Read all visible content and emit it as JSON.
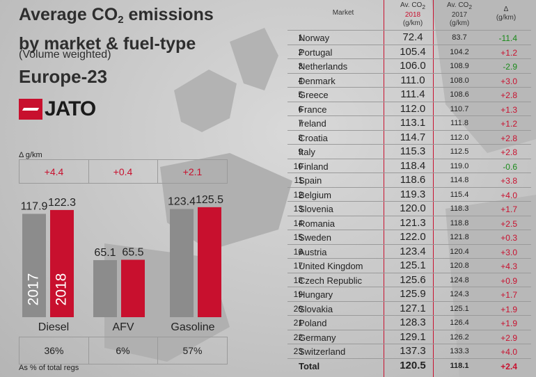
{
  "header": {
    "title_line1": "Average CO",
    "title_sub": "2",
    "title_line1_rest": " emissions",
    "title_line2": "by market & fuel-type",
    "subtitle": "(Volume weighted)",
    "region": "Europe-23",
    "brand": "JATO"
  },
  "colors": {
    "y2017": "#8c8c8c",
    "y2018": "#c8102e",
    "positive": "#c8102e",
    "negative": "#1a8a1a"
  },
  "chart_data": [
    {
      "type": "bar",
      "ylabel": "Δ g/km",
      "categories": [
        "Diesel",
        "AFV",
        "Gasoline"
      ],
      "series": [
        {
          "name": "2017",
          "values": [
            117.9,
            65.1,
            123.4
          ]
        },
        {
          "name": "2018",
          "values": [
            122.3,
            65.5,
            125.5
          ]
        }
      ],
      "deltas": [
        "+4.4",
        "+0.4",
        "+2.1"
      ],
      "shares": [
        "36%",
        "6%",
        "57%"
      ],
      "share_note": "As % of total regs"
    },
    {
      "type": "table",
      "columns": [
        "",
        "Market",
        "Av. CO2 2018 (g/km)",
        "Av. CO2 2017 (g/km)",
        "Δ (g/km)"
      ],
      "rows": [
        [
          "1",
          "Norway",
          "72.4",
          "83.7",
          "-11.4"
        ],
        [
          "2",
          "Portugal",
          "105.4",
          "104.2",
          "+1.2"
        ],
        [
          "3",
          "Netherlands",
          "106.0",
          "108.9",
          "-2.9"
        ],
        [
          "4",
          "Denmark",
          "111.0",
          "108.0",
          "+3.0"
        ],
        [
          "5",
          "Greece",
          "111.4",
          "108.6",
          "+2.8"
        ],
        [
          "6",
          "France",
          "112.0",
          "110.7",
          "+1.3"
        ],
        [
          "7",
          "Ireland",
          "113.1",
          "111.8",
          "+1.2"
        ],
        [
          "8",
          "Croatia",
          "114.7",
          "112.0",
          "+2.8"
        ],
        [
          "9",
          "Italy",
          "115.3",
          "112.5",
          "+2.8"
        ],
        [
          "10",
          "Finland",
          "118.4",
          "119.0",
          "-0.6"
        ],
        [
          "11",
          "Spain",
          "118.6",
          "114.8",
          "+3.8"
        ],
        [
          "12",
          "Belgium",
          "119.3",
          "115.4",
          "+4.0"
        ],
        [
          "13",
          "Slovenia",
          "120.0",
          "118.3",
          "+1.7"
        ],
        [
          "14",
          "Romania",
          "121.3",
          "118.8",
          "+2.5"
        ],
        [
          "15",
          "Sweden",
          "122.0",
          "121.8",
          "+0.3"
        ],
        [
          "16",
          "Austria",
          "123.4",
          "120.4",
          "+3.0"
        ],
        [
          "17",
          "United Kingdom",
          "125.1",
          "120.8",
          "+4.3"
        ],
        [
          "18",
          "Czech Republic",
          "125.6",
          "124.8",
          "+0.9"
        ],
        [
          "19",
          "Hungary",
          "125.9",
          "124.3",
          "+1.7"
        ],
        [
          "20",
          "Slovakia",
          "127.1",
          "125.1",
          "+1.9"
        ],
        [
          "21",
          "Poland",
          "128.3",
          "126.4",
          "+1.9"
        ],
        [
          "22",
          "Germany",
          "129.1",
          "126.2",
          "+2.9"
        ],
        [
          "23",
          "Switzerland",
          "137.3",
          "133.3",
          "+4.0"
        ],
        [
          "",
          "Total",
          "120.5",
          "118.1",
          "+2.4"
        ]
      ]
    }
  ],
  "table_header": {
    "market": "Market",
    "h18_line1": "Av. CO",
    "h18_sub": "2",
    "h18_line2": "2018",
    "h18_line3": "(g/km)",
    "h17_line1": "Av. CO",
    "h17_sub": "2",
    "h17_line2": "2017",
    "h17_line3": "(g/km)",
    "hd_line1": "Δ",
    "hd_line2": "(g/km)"
  }
}
